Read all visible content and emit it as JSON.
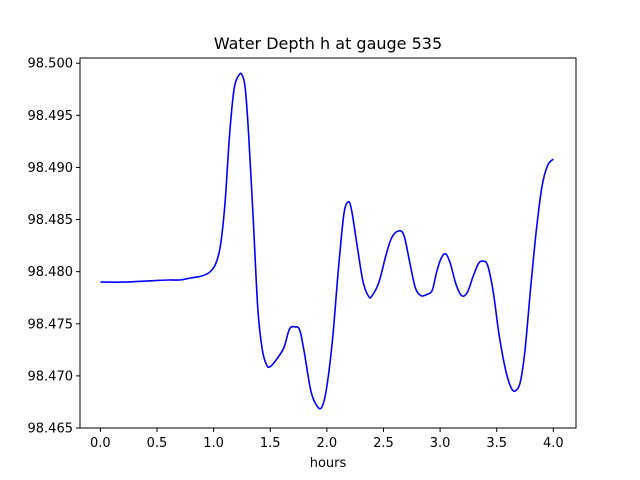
{
  "chart_data": {
    "type": "line",
    "title": "Water Depth h at gauge 535",
    "xlabel": "hours",
    "ylabel": "",
    "xlim": [
      -0.18,
      4.2
    ],
    "ylim": [
      98.465,
      98.5005
    ],
    "xticks": [
      0.0,
      0.5,
      1.0,
      1.5,
      2.0,
      2.5,
      3.0,
      3.5,
      4.0
    ],
    "xtick_labels": [
      "0.0",
      "0.5",
      "1.0",
      "1.5",
      "2.0",
      "2.5",
      "3.0",
      "3.5",
      "4.0"
    ],
    "yticks": [
      98.465,
      98.47,
      98.475,
      98.48,
      98.485,
      98.49,
      98.495,
      98.5
    ],
    "ytick_labels": [
      "98.465",
      "98.470",
      "98.475",
      "98.480",
      "98.485",
      "98.490",
      "98.495",
      "98.500"
    ],
    "grid": false,
    "series": [
      {
        "color": "#0000ff",
        "points": [
          [
            0.0,
            98.479
          ],
          [
            0.2,
            98.479
          ],
          [
            0.4,
            98.4791
          ],
          [
            0.6,
            98.4792
          ],
          [
            0.7,
            98.4792
          ],
          [
            0.8,
            98.4794
          ],
          [
            0.9,
            98.4796
          ],
          [
            0.97,
            98.48
          ],
          [
            1.02,
            98.4808
          ],
          [
            1.06,
            98.4825
          ],
          [
            1.1,
            98.4865
          ],
          [
            1.14,
            98.493
          ],
          [
            1.18,
            98.4975
          ],
          [
            1.22,
            98.4988
          ],
          [
            1.25,
            98.4989
          ],
          [
            1.28,
            98.4975
          ],
          [
            1.31,
            98.493
          ],
          [
            1.35,
            98.485
          ],
          [
            1.39,
            98.4765
          ],
          [
            1.43,
            98.4725
          ],
          [
            1.47,
            98.471
          ],
          [
            1.5,
            98.4709
          ],
          [
            1.55,
            98.4715
          ],
          [
            1.62,
            98.4727
          ],
          [
            1.67,
            98.4745
          ],
          [
            1.72,
            98.4747
          ],
          [
            1.76,
            98.4744
          ],
          [
            1.8,
            98.4723
          ],
          [
            1.86,
            98.4685
          ],
          [
            1.92,
            98.467
          ],
          [
            1.96,
            98.4671
          ],
          [
            2.0,
            98.469
          ],
          [
            2.05,
            98.4735
          ],
          [
            2.1,
            98.48
          ],
          [
            2.15,
            98.4855
          ],
          [
            2.19,
            98.4867
          ],
          [
            2.22,
            98.4858
          ],
          [
            2.27,
            98.4823
          ],
          [
            2.32,
            98.479
          ],
          [
            2.37,
            98.4776
          ],
          [
            2.4,
            98.4777
          ],
          [
            2.46,
            98.479
          ],
          [
            2.52,
            98.4815
          ],
          [
            2.57,
            98.4832
          ],
          [
            2.63,
            98.4839
          ],
          [
            2.68,
            98.4835
          ],
          [
            2.73,
            98.481
          ],
          [
            2.78,
            98.4785
          ],
          [
            2.83,
            98.4777
          ],
          [
            2.88,
            98.4778
          ],
          [
            2.93,
            98.4782
          ],
          [
            2.97,
            98.48
          ],
          [
            3.01,
            98.4813
          ],
          [
            3.05,
            98.4817
          ],
          [
            3.09,
            98.4808
          ],
          [
            3.14,
            98.4788
          ],
          [
            3.19,
            98.4777
          ],
          [
            3.24,
            98.478
          ],
          [
            3.29,
            98.4795
          ],
          [
            3.34,
            98.4808
          ],
          [
            3.38,
            98.481
          ],
          [
            3.42,
            98.4806
          ],
          [
            3.47,
            98.478
          ],
          [
            3.52,
            98.474
          ],
          [
            3.58,
            98.4705
          ],
          [
            3.63,
            98.4688
          ],
          [
            3.67,
            98.4686
          ],
          [
            3.71,
            98.4695
          ],
          [
            3.75,
            98.4725
          ],
          [
            3.8,
            98.4785
          ],
          [
            3.85,
            98.484
          ],
          [
            3.9,
            98.4882
          ],
          [
            3.95,
            98.4902
          ],
          [
            4.0,
            98.4908
          ]
        ]
      }
    ]
  }
}
